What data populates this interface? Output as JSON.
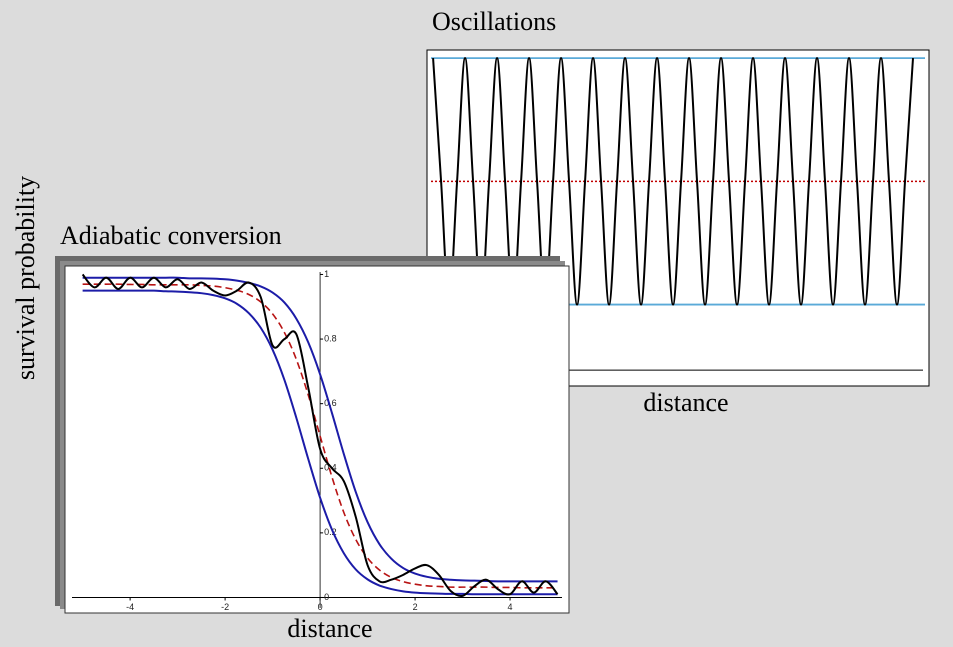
{
  "chart_data": [
    {
      "type": "line",
      "title": "Oscillations",
      "x_label": "distance",
      "xlim": [
        -0.19,
        15.5
      ],
      "ylim": [
        -0.051,
        1.026
      ],
      "hlines": [
        {
          "value": 1,
          "color": "#5aaad8"
        },
        {
          "value": 0.21,
          "color": "#5aaad8"
        },
        {
          "value": 0.605,
          "color": "#c00000",
          "line_style": "dotted"
        }
      ],
      "x": [
        0,
        0.25,
        0.5,
        0.75,
        1,
        1.25,
        1.5,
        1.75,
        2,
        2.25,
        2.5,
        2.75,
        3,
        3.25,
        3.5,
        3.75,
        4,
        4.25,
        4.5,
        4.75,
        5,
        5.25,
        5.5,
        5.75,
        6,
        6.25,
        6.5,
        6.75,
        7,
        7.25,
        7.5,
        7.75,
        8,
        8.25,
        8.5,
        8.75,
        9,
        9.25,
        9.5,
        9.75,
        10,
        10.25,
        10.5,
        10.75,
        11,
        11.25,
        11.5,
        11.75,
        12,
        12.25,
        12.5,
        12.75,
        13,
        13.25,
        13.5,
        13.75,
        14,
        14.25,
        14.5,
        14.75,
        15
      ],
      "series": [
        {
          "color": "#000000",
          "values": [
            1,
            0.605,
            0.21,
            0.605,
            1,
            0.605,
            0.21,
            0.605,
            1,
            0.605,
            0.21,
            0.605,
            1,
            0.605,
            0.21,
            0.605,
            1,
            0.605,
            0.21,
            0.605,
            1,
            0.605,
            0.21,
            0.605,
            1,
            0.605,
            0.21,
            0.605,
            1,
            0.605,
            0.21,
            0.605,
            1,
            0.605,
            0.21,
            0.605,
            1,
            0.605,
            0.21,
            0.605,
            1,
            0.605,
            0.21,
            0.605,
            1,
            0.605,
            0.21,
            0.605,
            1,
            0.605,
            0.21,
            0.605,
            1,
            0.605,
            0.21,
            0.605,
            1,
            0.605,
            0.21,
            0.605,
            1
          ]
        }
      ]
    },
    {
      "type": "line",
      "title": "Adiabatic conversion",
      "x_label": "distance",
      "y_label": "survival probability",
      "xlim": [
        -5.35,
        5.22
      ],
      "ylim": [
        -0.045,
        1.02
      ],
      "xticks": [
        -4,
        -2,
        0,
        2,
        4
      ],
      "yticks": [
        0,
        0.2,
        0.4,
        0.6,
        0.8,
        1
      ],
      "x": [
        -5,
        -4.75,
        -4.5,
        -4.25,
        -4,
        -3.75,
        -3.5,
        -3.25,
        -3,
        -2.75,
        -2.5,
        -2.25,
        -2,
        -1.75,
        -1.5,
        -1.25,
        -1,
        -0.75,
        -0.5,
        -0.25,
        0,
        0.25,
        0.5,
        0.75,
        1,
        1.25,
        1.5,
        1.75,
        2,
        2.25,
        2.5,
        2.75,
        3,
        3.25,
        3.5,
        3.75,
        4,
        4.25,
        4.5,
        4.75,
        5
      ],
      "series": [
        {
          "color": "#1c1ca8",
          "values": [
            0.99,
            0.99,
            0.99,
            0.99,
            0.99,
            0.99,
            0.99,
            0.99,
            0.99,
            0.988,
            0.988,
            0.987,
            0.985,
            0.981,
            0.974,
            0.963,
            0.944,
            0.913,
            0.863,
            0.79,
            0.691,
            0.571,
            0.444,
            0.327,
            0.233,
            0.165,
            0.12,
            0.091,
            0.074,
            0.064,
            0.058,
            0.055,
            0.053,
            0.052,
            0.051,
            0.05,
            0.05,
            0.05,
            0.05,
            0.05,
            0.05
          ]
        },
        {
          "color": "#1c1ca8",
          "values": [
            0.95,
            0.95,
            0.95,
            0.95,
            0.95,
            0.95,
            0.95,
            0.948,
            0.947,
            0.945,
            0.942,
            0.936,
            0.926,
            0.909,
            0.88,
            0.835,
            0.767,
            0.673,
            0.556,
            0.429,
            0.309,
            0.21,
            0.137,
            0.087,
            0.056,
            0.037,
            0.026,
            0.019,
            0.015,
            0.013,
            0.012,
            0.011,
            0.011,
            0.01,
            0.01,
            0.01,
            0.01,
            0.01,
            0.01,
            0.01,
            0.01
          ]
        },
        {
          "color": "#b81414",
          "line_style": "dashed",
          "values": [
            0.97,
            0.97,
            0.97,
            0.97,
            0.969,
            0.969,
            0.968,
            0.968,
            0.968,
            0.968,
            0.966,
            0.964,
            0.959,
            0.951,
            0.938,
            0.915,
            0.878,
            0.82,
            0.737,
            0.627,
            0.5,
            0.373,
            0.263,
            0.18,
            0.122,
            0.085,
            0.062,
            0.049,
            0.041,
            0.036,
            0.034,
            0.032,
            0.032,
            0.032,
            0.032,
            0.031,
            0.031,
            0.03,
            0.03,
            0.03,
            0.03
          ]
        },
        {
          "color": "#000000",
          "values": [
            1,
            0.96,
            0.99,
            0.955,
            0.99,
            0.96,
            0.99,
            0.96,
            0.985,
            0.955,
            0.975,
            0.95,
            0.935,
            0.95,
            0.975,
            0.93,
            0.78,
            0.8,
            0.815,
            0.65,
            0.46,
            0.4,
            0.36,
            0.25,
            0.1,
            0.05,
            0.055,
            0.07,
            0.09,
            0.1,
            0.07,
            0.02,
            0.005,
            0.035,
            0.055,
            0.025,
            0.01,
            0.05,
            0.015,
            0.05,
            0.01
          ]
        }
      ]
    }
  ]
}
